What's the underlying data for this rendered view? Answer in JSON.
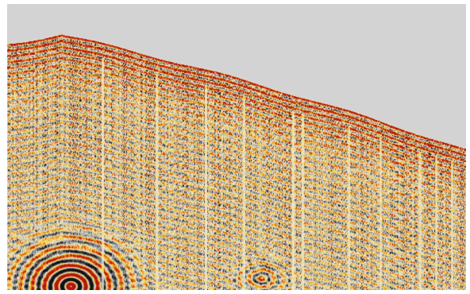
{
  "image": {
    "subject": "seismic-section",
    "colors": {
      "background": "#d3d3d3",
      "page": "#ffffff",
      "positive_strong": "#b2150f",
      "positive_mid": "#e8741c",
      "positive_weak": "#f2d23c",
      "neutral": "#ece9df",
      "negative_weak": "#9a9a9a",
      "negative_strong": "#111111"
    }
  }
}
